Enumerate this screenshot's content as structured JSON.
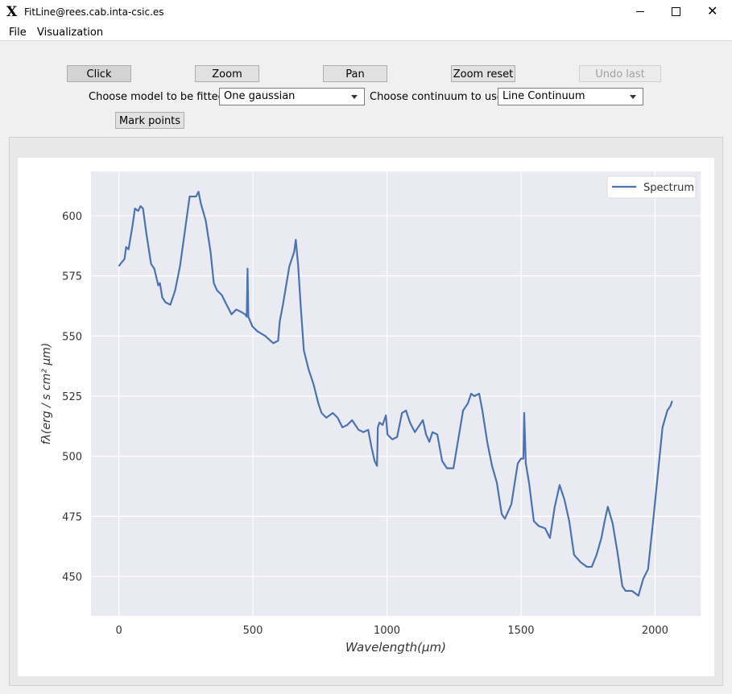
{
  "window": {
    "title": "FitLine@rees.cab.inta-csic.es"
  },
  "menu": [
    "File",
    "Visualization"
  ],
  "toolbar": {
    "buttons": [
      "Click",
      "Zoom",
      "Pan",
      "Zoom reset",
      "Undo last zoom"
    ]
  },
  "controls": {
    "model_label": "Choose model to be fitted",
    "model_value": "One gaussian",
    "continuum_label": "Choose continuum to use",
    "continuum_value": "Line Continuum",
    "mark_button": "Mark points"
  },
  "chart_data": {
    "type": "line",
    "xlabel": "Wavelength(μm)",
    "ylabel": "fλ(erg / s cm² μm)",
    "x": [
      0,
      6,
      21,
      27,
      36,
      51,
      60,
      72,
      81,
      90,
      102,
      120,
      132,
      147,
      153,
      162,
      174,
      192,
      210,
      228,
      243,
      264,
      288,
      297,
      306,
      324,
      342,
      354,
      366,
      384,
      402,
      420,
      438,
      456,
      471,
      477,
      480,
      483,
      498,
      516,
      546,
      576,
      594,
      600,
      612,
      636,
      654,
      660,
      669,
      678,
      690,
      708,
      726,
      744,
      756,
      774,
      798,
      816,
      834,
      852,
      870,
      894,
      912,
      930,
      942,
      954,
      963,
      966,
      972,
      984,
      996,
      1002,
      1020,
      1038,
      1056,
      1071,
      1086,
      1104,
      1122,
      1134,
      1146,
      1158,
      1170,
      1188,
      1206,
      1224,
      1248,
      1266,
      1284,
      1302,
      1314,
      1326,
      1344,
      1356,
      1374,
      1392,
      1410,
      1428,
      1440,
      1464,
      1488,
      1500,
      1509,
      1512,
      1518,
      1530,
      1548,
      1566,
      1590,
      1608,
      1626,
      1644,
      1662,
      1680,
      1698,
      1722,
      1746,
      1764,
      1782,
      1800,
      1812,
      1824,
      1842,
      1860,
      1878,
      1890,
      1914,
      1938,
      1956,
      1974,
      1992,
      2010,
      2028,
      2046,
      2058,
      2064
    ],
    "series": [
      {
        "name": "Spectrum",
        "color": "#4c72b0",
        "values": [
          579,
          580,
          582,
          587,
          586,
          596,
          603,
          602,
          604,
          603,
          593,
          580,
          578,
          571,
          572,
          566,
          564,
          563,
          569,
          579,
          591,
          608,
          608,
          610,
          605,
          598,
          585,
          572,
          569,
          567,
          563,
          559,
          561,
          560,
          559,
          558,
          578,
          558,
          554,
          552,
          550,
          547,
          548,
          556,
          563,
          579,
          585,
          590,
          579,
          563,
          544,
          536,
          530,
          522,
          518,
          516,
          518,
          516,
          512,
          513,
          515,
          511,
          510,
          511,
          504,
          498,
          496,
          512,
          514,
          513,
          517,
          509,
          507,
          508,
          518,
          519,
          514,
          510,
          513,
          515,
          509,
          506,
          510,
          509,
          498,
          495,
          495,
          507,
          519,
          522,
          526,
          525,
          526,
          519,
          506,
          496,
          489,
          476,
          474,
          480,
          497,
          499,
          499,
          518,
          497,
          489,
          473,
          471,
          470,
          466,
          479,
          488,
          482,
          473,
          459,
          456,
          454,
          454,
          459,
          466,
          473,
          479,
          472,
          460,
          446,
          444,
          444,
          442,
          449,
          453,
          472,
          492,
          512,
          519,
          521,
          523
        ]
      }
    ],
    "xlim": [
      -104,
      2170
    ],
    "ylim": [
      433.6,
      618.4
    ],
    "xticks": [
      0,
      500,
      1000,
      1500,
      2000
    ],
    "yticks": [
      450,
      475,
      500,
      525,
      550,
      575,
      600
    ],
    "grid": true,
    "legend": "upper right"
  }
}
